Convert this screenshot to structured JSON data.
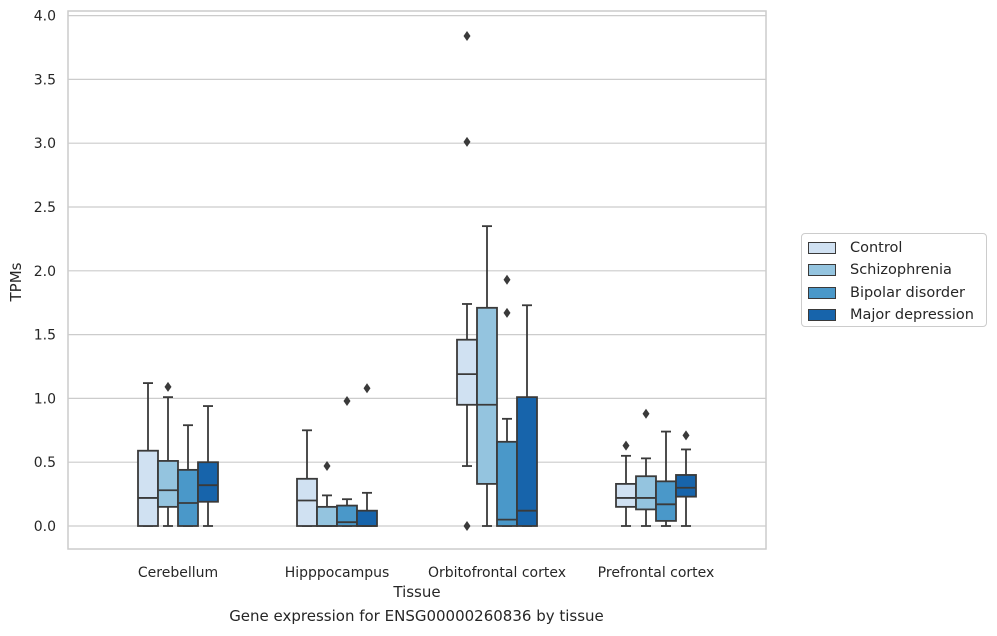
{
  "caption": "Gene expression for ENSG00000260836 by tissue",
  "chart_data": {
    "type": "box",
    "xlabel": "Tissue",
    "ylabel": "TPMs",
    "ylim": [
      -0.18,
      4.05
    ],
    "yticks": [
      "0.0",
      "0.5",
      "1.0",
      "1.5",
      "2.0",
      "2.5",
      "3.0",
      "3.5",
      "4.0"
    ],
    "grid": "horizontal",
    "legend_position": "right-outside",
    "categories": [
      "Cerebellum",
      "Hipppocampus",
      "Orbitofrontal cortex",
      "Prefrontal cortex"
    ],
    "series": [
      {
        "name": "Control",
        "color": "#d0e1f2",
        "boxes": [
          {
            "whislo": 0.0,
            "q1": 0.0,
            "med": 0.22,
            "q3": 0.59,
            "whishi": 1.12,
            "fliers": []
          },
          {
            "whislo": 0.0,
            "q1": 0.0,
            "med": 0.2,
            "q3": 0.37,
            "whishi": 0.75,
            "fliers": []
          },
          {
            "whislo": 0.47,
            "q1": 0.95,
            "med": 1.19,
            "q3": 1.46,
            "whishi": 1.74,
            "fliers": [
              3.84,
              3.01,
              0.0
            ]
          },
          {
            "whislo": 0.0,
            "q1": 0.15,
            "med": 0.22,
            "q3": 0.33,
            "whishi": 0.55,
            "fliers": [
              0.63
            ]
          }
        ]
      },
      {
        "name": "Schizophrenia",
        "color": "#94c4df",
        "boxes": [
          {
            "whislo": 0.0,
            "q1": 0.15,
            "med": 0.28,
            "q3": 0.51,
            "whishi": 1.01,
            "fliers": [
              1.09
            ]
          },
          {
            "whislo": 0.0,
            "q1": 0.0,
            "med": 0.0,
            "q3": 0.15,
            "whishi": 0.24,
            "fliers": [
              0.47
            ]
          },
          {
            "whislo": 0.0,
            "q1": 0.33,
            "med": 0.95,
            "q3": 1.71,
            "whishi": 2.35,
            "fliers": []
          },
          {
            "whislo": 0.0,
            "q1": 0.13,
            "med": 0.22,
            "q3": 0.39,
            "whishi": 0.53,
            "fliers": [
              0.88
            ]
          }
        ]
      },
      {
        "name": "Bipolar disorder",
        "color": "#4a98c9",
        "boxes": [
          {
            "whislo": 0.0,
            "q1": 0.0,
            "med": 0.18,
            "q3": 0.44,
            "whishi": 0.79,
            "fliers": []
          },
          {
            "whislo": 0.0,
            "q1": 0.0,
            "med": 0.03,
            "q3": 0.16,
            "whishi": 0.21,
            "fliers": [
              0.98
            ]
          },
          {
            "whislo": 0.0,
            "q1": 0.0,
            "med": 0.05,
            "q3": 0.66,
            "whishi": 0.84,
            "fliers": [
              1.93,
              1.67
            ]
          },
          {
            "whislo": 0.0,
            "q1": 0.04,
            "med": 0.17,
            "q3": 0.35,
            "whishi": 0.74,
            "fliers": []
          }
        ]
      },
      {
        "name": "Major depression",
        "color": "#1764ab",
        "boxes": [
          {
            "whislo": 0.0,
            "q1": 0.19,
            "med": 0.32,
            "q3": 0.5,
            "whishi": 0.94,
            "fliers": []
          },
          {
            "whislo": 0.0,
            "q1": 0.0,
            "med": 0.0,
            "q3": 0.12,
            "whishi": 0.26,
            "fliers": [
              1.08
            ]
          },
          {
            "whislo": 0.0,
            "q1": 0.0,
            "med": 0.12,
            "q3": 1.01,
            "whishi": 1.73,
            "fliers": []
          },
          {
            "whislo": 0.0,
            "q1": 0.23,
            "med": 0.3,
            "q3": 0.4,
            "whishi": 0.6,
            "fliers": [
              0.71
            ]
          }
        ]
      }
    ]
  }
}
